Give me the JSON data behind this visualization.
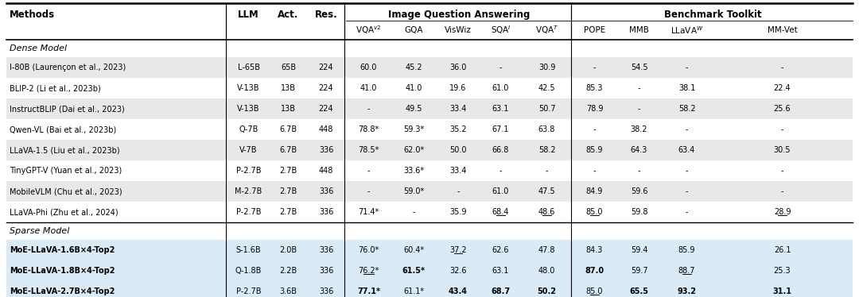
{
  "fig_width": 10.8,
  "fig_height": 3.74,
  "bg_color": "#ffffff",
  "dense_row_colors": [
    "#e8e8e8",
    "#ffffff",
    "#e8e8e8",
    "#ffffff",
    "#e8e8e8",
    "#ffffff",
    "#e8e8e8",
    "#ffffff"
  ],
  "sparse_row_color": "#daeaf7",
  "rows": [
    {
      "name": "I-80B (Laurençon et al., 2023)",
      "llm": "L-65B",
      "act": "65B",
      "res": "224",
      "vqa_v2": "60.0",
      "gqa": "45.2",
      "viswiz": "36.0",
      "sqa_i": "-",
      "vqa_t": "30.9",
      "pope": "-",
      "mmb": "54.5",
      "llava_w": "-",
      "mm_vet": "-",
      "bold": [],
      "underline": [],
      "section": "dense"
    },
    {
      "name": "BLIP-2 (Li et al., 2023b)",
      "llm": "V-13B",
      "act": "13B",
      "res": "224",
      "vqa_v2": "41.0",
      "gqa": "41.0",
      "viswiz": "19.6",
      "sqa_i": "61.0",
      "vqa_t": "42.5",
      "pope": "85.3",
      "mmb": "-",
      "llava_w": "38.1",
      "mm_vet": "22.4",
      "bold": [],
      "underline": [],
      "section": "dense"
    },
    {
      "name": "InstructBLIP (Dai et al., 2023)",
      "llm": "V-13B",
      "act": "13B",
      "res": "224",
      "vqa_v2": "-",
      "gqa": "49.5",
      "viswiz": "33.4",
      "sqa_i": "63.1",
      "vqa_t": "50.7",
      "pope": "78.9",
      "mmb": "-",
      "llava_w": "58.2",
      "mm_vet": "25.6",
      "bold": [],
      "underline": [],
      "section": "dense"
    },
    {
      "name": "Qwen-VL (Bai et al., 2023b)",
      "llm": "Q-7B",
      "act": "6.7B",
      "res": "448",
      "vqa_v2": "78.8*",
      "gqa": "59.3*",
      "viswiz": "35.2",
      "sqa_i": "67.1",
      "vqa_t": "63.8",
      "pope": "-",
      "mmb": "38.2",
      "llava_w": "-",
      "mm_vet": "-",
      "bold": [],
      "underline": [],
      "section": "dense"
    },
    {
      "name": "LLaVA-1.5 (Liu et al., 2023b)",
      "llm": "V-7B",
      "act": "6.7B",
      "res": "336",
      "vqa_v2": "78.5*",
      "gqa": "62.0*",
      "viswiz": "50.0",
      "sqa_i": "66.8",
      "vqa_t": "58.2",
      "pope": "85.9",
      "mmb": "64.3",
      "llava_w": "63.4",
      "mm_vet": "30.5",
      "bold": [],
      "underline": [],
      "section": "dense"
    },
    {
      "name": "TinyGPT-V (Yuan et al., 2023)",
      "llm": "P-2.7B",
      "act": "2.7B",
      "res": "448",
      "vqa_v2": "-",
      "gqa": "33.6*",
      "viswiz": "33.4",
      "sqa_i": "-",
      "vqa_t": "-",
      "pope": "-",
      "mmb": "-",
      "llava_w": "-",
      "mm_vet": "-",
      "bold": [],
      "underline": [],
      "section": "dense"
    },
    {
      "name": "MobileVLM (Chu et al., 2023)",
      "llm": "M-2.7B",
      "act": "2.7B",
      "res": "336",
      "vqa_v2": "-",
      "gqa": "59.0*",
      "viswiz": "-",
      "sqa_i": "61.0",
      "vqa_t": "47.5",
      "pope": "84.9",
      "mmb": "59.6",
      "llava_w": "-",
      "mm_vet": "-",
      "bold": [],
      "underline": [],
      "section": "dense"
    },
    {
      "name": "LLaVA-Phi (Zhu et al., 2024)",
      "llm": "P-2.7B",
      "act": "2.7B",
      "res": "336",
      "vqa_v2": "71.4*",
      "gqa": "-",
      "viswiz": "35.9",
      "sqa_i": "68.4",
      "vqa_t": "48.6",
      "pope": "85.0",
      "mmb": "59.8",
      "llava_w": "-",
      "mm_vet": "28.9",
      "bold": [],
      "underline": [
        "sqa_i",
        "vqa_t",
        "pope",
        "mm_vet"
      ],
      "section": "dense"
    },
    {
      "name": "MoE-LLaVA-1.6B×4-Top2",
      "llm": "S-1.6B",
      "act": "2.0B",
      "res": "336",
      "vqa_v2": "76.0*",
      "gqa": "60.4*",
      "viswiz": "37.2",
      "sqa_i": "62.6",
      "vqa_t": "47.8",
      "pope": "84.3",
      "mmb": "59.4",
      "llava_w": "85.9",
      "mm_vet": "26.1",
      "bold": [],
      "underline": [
        "viswiz"
      ],
      "section": "sparse"
    },
    {
      "name": "MoE-LLaVA-1.8B×4-Top2",
      "llm": "Q-1.8B",
      "act": "2.2B",
      "res": "336",
      "vqa_v2": "76.2*",
      "gqa": "61.5*",
      "viswiz": "32.6",
      "sqa_i": "63.1",
      "vqa_t": "48.0",
      "pope": "87.0",
      "mmb": "59.7",
      "llava_w": "88.7",
      "mm_vet": "25.3",
      "bold": [
        "pope",
        "gqa"
      ],
      "underline": [
        "vqa_v2",
        "llava_w"
      ],
      "section": "sparse"
    },
    {
      "name": "MoE-LLaVA-2.7B×4-Top2",
      "llm": "P-2.7B",
      "act": "3.6B",
      "res": "336",
      "vqa_v2": "77.1*",
      "gqa": "61.1*",
      "viswiz": "43.4",
      "sqa_i": "68.7",
      "vqa_t": "50.2",
      "pope": "85.0",
      "mmb": "65.5",
      "llava_w": "93.2",
      "mm_vet": "31.1",
      "bold": [
        "vqa_v2",
        "viswiz",
        "sqa_i",
        "vqa_t",
        "mmb",
        "llava_w",
        "mm_vet"
      ],
      "underline": [
        "pope"
      ],
      "section": "sparse"
    }
  ]
}
